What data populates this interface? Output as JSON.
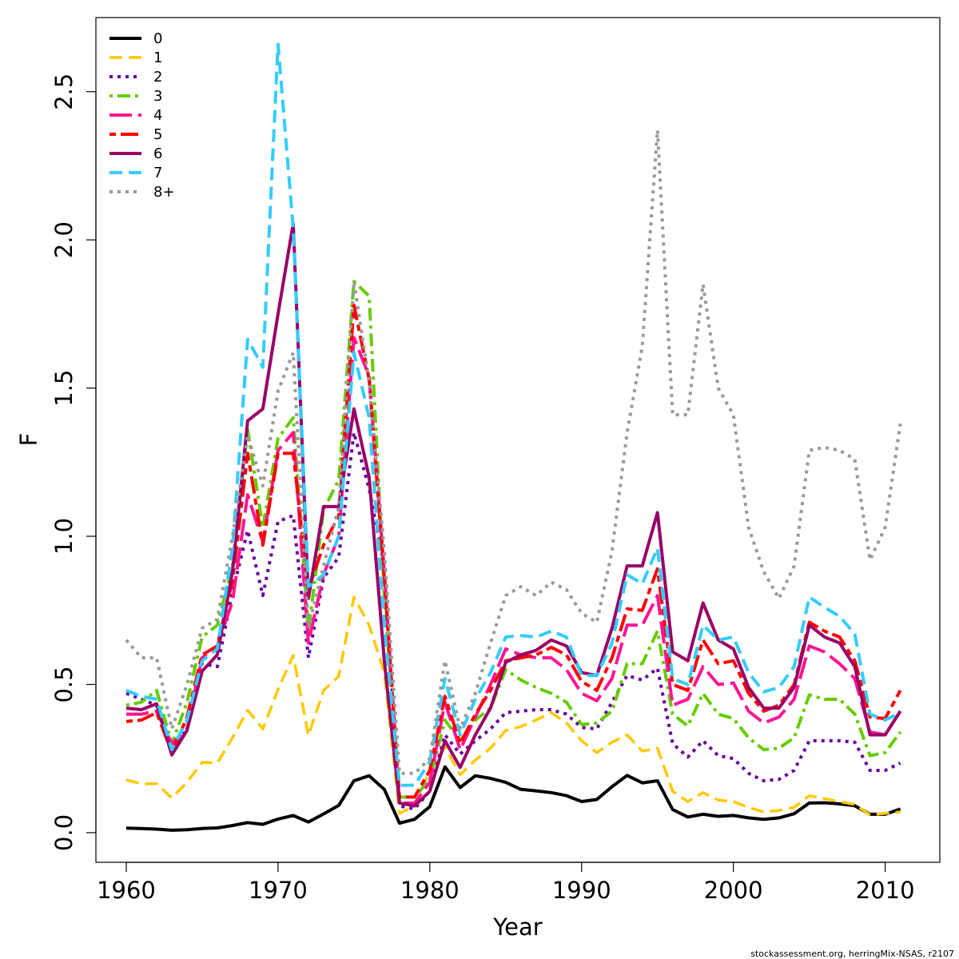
{
  "chart_data": {
    "type": "line",
    "title": "",
    "xlabel": "Year",
    "ylabel": "F",
    "xlim": [
      1958,
      2013.6
    ],
    "ylim": [
      -0.1,
      2.75
    ],
    "x_ticks": [
      1960,
      1970,
      1980,
      1990,
      2000,
      2010
    ],
    "x_tick_labels": [
      "1960",
      "1970",
      "1980",
      "1990",
      "2000",
      "2010"
    ],
    "y_ticks": [
      0.0,
      0.5,
      1.0,
      1.5,
      2.0,
      2.5
    ],
    "y_tick_labels": [
      "0.0",
      "0.5",
      "1.0",
      "1.5",
      "2.0",
      "2.5"
    ],
    "grid": false,
    "legend_position": "top-left",
    "credit": "stockassessment.org, herringMix-NSAS, r2107",
    "x": [
      1960,
      1961,
      1962,
      1963,
      1964,
      1965,
      1966,
      1967,
      1968,
      1969,
      1970,
      1971,
      1972,
      1973,
      1974,
      1975,
      1976,
      1977,
      1978,
      1979,
      1980,
      1981,
      1982,
      1983,
      1984,
      1985,
      1986,
      1987,
      1988,
      1989,
      1990,
      1991,
      1992,
      1993,
      1994,
      1995,
      1996,
      1997,
      1998,
      1999,
      2000,
      2001,
      2002,
      2003,
      2004,
      2005,
      2006,
      2007,
      2008,
      2009,
      2010,
      2011
    ],
    "series": [
      {
        "name": "0",
        "color": "#000000",
        "dash": "solid",
        "width": 4,
        "values": [
          0.015,
          0.014,
          0.012,
          0.008,
          0.01,
          0.014,
          0.016,
          0.024,
          0.034,
          0.028,
          0.046,
          0.058,
          0.036,
          0.063,
          0.092,
          0.175,
          0.192,
          0.146,
          0.032,
          0.045,
          0.088,
          0.222,
          0.152,
          0.192,
          0.183,
          0.17,
          0.146,
          0.141,
          0.135,
          0.125,
          0.105,
          0.112,
          0.155,
          0.193,
          0.168,
          0.175,
          0.078,
          0.053,
          0.062,
          0.055,
          0.058,
          0.05,
          0.045,
          0.05,
          0.064,
          0.1,
          0.101,
          0.097,
          0.091,
          0.062,
          0.062,
          0.08
        ]
      },
      {
        "name": "1",
        "color": "#FFC800",
        "dash": "dashed",
        "width": 3.5,
        "values": [
          0.178,
          0.165,
          0.165,
          0.117,
          0.17,
          0.237,
          0.235,
          0.32,
          0.413,
          0.35,
          0.483,
          0.598,
          0.328,
          0.48,
          0.528,
          0.795,
          0.7,
          0.54,
          0.065,
          0.09,
          0.21,
          0.29,
          0.195,
          0.245,
          0.285,
          0.345,
          0.358,
          0.38,
          0.405,
          0.37,
          0.31,
          0.27,
          0.305,
          0.33,
          0.275,
          0.285,
          0.14,
          0.105,
          0.135,
          0.11,
          0.105,
          0.085,
          0.07,
          0.075,
          0.085,
          0.125,
          0.115,
          0.105,
          0.095,
          0.06,
          0.065,
          0.07
        ]
      },
      {
        "name": "2",
        "color": "#660099",
        "dash": "dotted",
        "width": 4,
        "values": [
          0.47,
          0.45,
          0.43,
          0.27,
          0.35,
          0.57,
          0.56,
          0.81,
          1.02,
          0.8,
          1.05,
          1.07,
          0.59,
          0.86,
          0.93,
          1.35,
          1.16,
          0.9,
          0.09,
          0.08,
          0.14,
          0.33,
          0.265,
          0.31,
          0.35,
          0.405,
          0.41,
          0.415,
          0.415,
          0.4,
          0.355,
          0.35,
          0.44,
          0.53,
          0.515,
          0.555,
          0.3,
          0.255,
          0.31,
          0.26,
          0.25,
          0.2,
          0.175,
          0.18,
          0.21,
          0.31,
          0.31,
          0.31,
          0.305,
          0.21,
          0.21,
          0.235
        ]
      },
      {
        "name": "3",
        "color": "#66CC00",
        "dash": "dashdot",
        "width": 4,
        "values": [
          0.43,
          0.44,
          0.48,
          0.3,
          0.44,
          0.66,
          0.7,
          0.9,
          1.36,
          1.03,
          1.33,
          1.4,
          0.68,
          1.09,
          1.19,
          1.86,
          1.81,
          0.8,
          0.12,
          0.12,
          0.18,
          0.38,
          0.31,
          0.38,
          0.42,
          0.55,
          0.515,
          0.49,
          0.47,
          0.44,
          0.365,
          0.37,
          0.41,
          0.57,
          0.57,
          0.68,
          0.4,
          0.36,
          0.47,
          0.4,
          0.385,
          0.32,
          0.28,
          0.285,
          0.32,
          0.465,
          0.45,
          0.45,
          0.4,
          0.26,
          0.27,
          0.34
        ]
      },
      {
        "name": "4",
        "color": "#FF1493",
        "dash": "longdash",
        "width": 4,
        "values": [
          0.4,
          0.4,
          0.41,
          0.3,
          0.35,
          0.59,
          0.63,
          0.78,
          1.14,
          0.98,
          1.29,
          1.35,
          0.64,
          0.87,
          1.0,
          1.67,
          1.54,
          0.88,
          0.1,
          0.1,
          0.17,
          0.44,
          0.28,
          0.39,
          0.5,
          0.62,
          0.6,
          0.59,
          0.59,
          0.55,
          0.47,
          0.445,
          0.52,
          0.7,
          0.7,
          0.8,
          0.43,
          0.45,
          0.56,
          0.5,
          0.505,
          0.41,
          0.37,
          0.39,
          0.45,
          0.63,
          0.61,
          0.57,
          0.52,
          0.34,
          0.33,
          0.41
        ]
      },
      {
        "name": "5",
        "color": "#FF0000",
        "dash": "twodash",
        "width": 4,
        "values": [
          0.375,
          0.38,
          0.405,
          0.27,
          0.39,
          0.6,
          0.63,
          0.85,
          1.28,
          0.97,
          1.28,
          1.28,
          0.82,
          0.97,
          1.07,
          1.78,
          1.53,
          0.86,
          0.12,
          0.12,
          0.21,
          0.46,
          0.3,
          0.4,
          0.48,
          0.58,
          0.59,
          0.6,
          0.625,
          0.6,
          0.51,
          0.48,
          0.59,
          0.755,
          0.75,
          0.89,
          0.5,
          0.48,
          0.65,
          0.57,
          0.58,
          0.47,
          0.41,
          0.43,
          0.5,
          0.71,
          0.68,
          0.66,
          0.58,
          0.39,
          0.385,
          0.48
        ]
      },
      {
        "name": "6",
        "color": "#990066",
        "dash": "solid",
        "width": 4,
        "values": [
          0.42,
          0.415,
          0.435,
          0.262,
          0.345,
          0.545,
          0.6,
          0.88,
          1.39,
          1.43,
          1.75,
          2.055,
          0.79,
          1.1,
          1.1,
          1.43,
          1.2,
          0.58,
          0.1,
          0.09,
          0.14,
          0.31,
          0.22,
          0.33,
          0.42,
          0.575,
          0.6,
          0.615,
          0.65,
          0.63,
          0.54,
          0.53,
          0.69,
          0.9,
          0.9,
          1.08,
          0.61,
          0.58,
          0.775,
          0.65,
          0.62,
          0.49,
          0.42,
          0.42,
          0.49,
          0.7,
          0.66,
          0.64,
          0.56,
          0.33,
          0.33,
          0.41
        ]
      },
      {
        "name": "7",
        "color": "#33CCFF",
        "dash": "dashed",
        "width": 4,
        "values": [
          0.48,
          0.46,
          0.45,
          0.28,
          0.38,
          0.58,
          0.62,
          0.96,
          1.665,
          1.57,
          2.66,
          2.04,
          0.83,
          0.87,
          1.0,
          1.62,
          1.4,
          0.7,
          0.16,
          0.16,
          0.24,
          0.52,
          0.33,
          0.45,
          0.54,
          0.66,
          0.665,
          0.66,
          0.68,
          0.66,
          0.53,
          0.53,
          0.64,
          0.87,
          0.84,
          0.96,
          0.52,
          0.5,
          0.7,
          0.65,
          0.66,
          0.54,
          0.475,
          0.49,
          0.56,
          0.795,
          0.76,
          0.73,
          0.67,
          0.4,
          0.38,
          0.405
        ]
      },
      {
        "name": "8+",
        "color": "#999999",
        "dash": "dotted",
        "width": 4,
        "values": [
          0.65,
          0.59,
          0.59,
          0.35,
          0.5,
          0.69,
          0.72,
          1.0,
          1.34,
          1.17,
          1.49,
          1.62,
          0.69,
          0.9,
          1.1,
          1.86,
          1.52,
          0.95,
          0.2,
          0.2,
          0.25,
          0.58,
          0.35,
          0.47,
          0.64,
          0.8,
          0.83,
          0.8,
          0.845,
          0.82,
          0.74,
          0.71,
          0.95,
          1.35,
          1.64,
          2.37,
          1.41,
          1.41,
          1.85,
          1.5,
          1.41,
          1.03,
          0.88,
          0.79,
          0.9,
          1.29,
          1.3,
          1.29,
          1.26,
          0.92,
          1.03,
          1.38
        ]
      }
    ]
  }
}
